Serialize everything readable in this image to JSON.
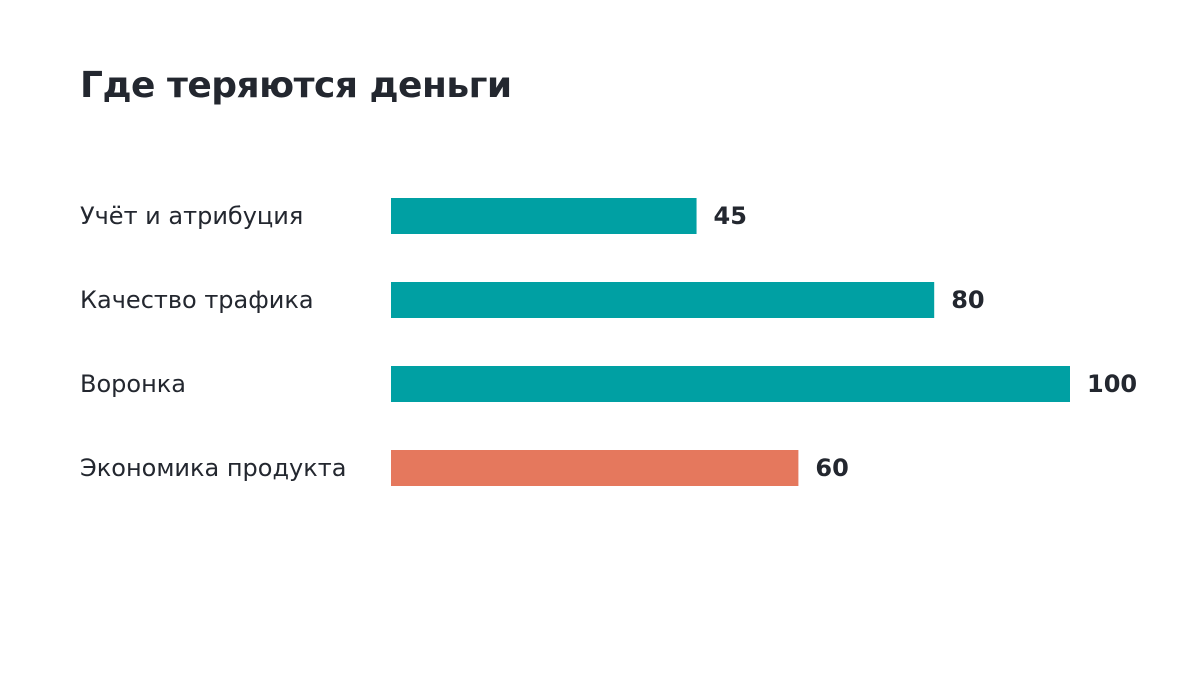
{
  "title": "Где теряются деньги",
  "colors": {
    "primary": "#00A0A3",
    "highlight": "#E5785D",
    "text": "#23272F"
  },
  "chart_data": {
    "type": "bar",
    "orientation": "horizontal",
    "title": "Где теряются деньги",
    "categories": [
      "Учёт и атрибуция",
      "Качество трафика",
      "Воронка",
      "Экономика продукта"
    ],
    "values": [
      45,
      80,
      100,
      60
    ],
    "bar_colors": [
      "#00A0A3",
      "#00A0A3",
      "#00A0A3",
      "#E5785D"
    ],
    "xlim": [
      0,
      100
    ],
    "grid": false,
    "legend": "none",
    "data_labels": true
  }
}
